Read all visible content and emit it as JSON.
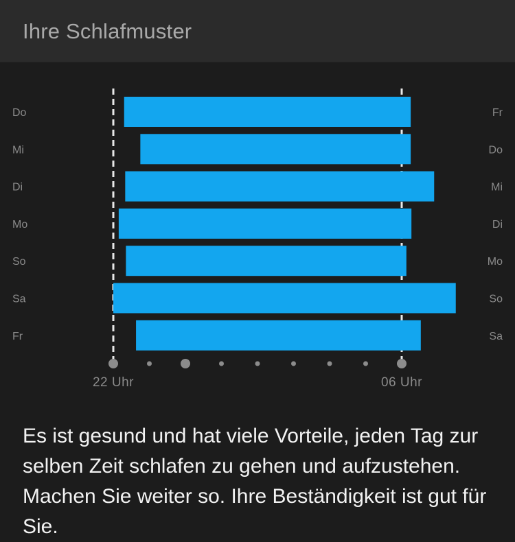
{
  "header": {
    "title": "Ihre Schlafmuster"
  },
  "message": "Es ist gesund und hat viele Vorteile, jeden Tag zur selben Zeit schlafen zu gehen und aufzustehen. Machen Sie weiter so. Ihre Beständigkeit ist gut für Sie.",
  "chart_data": {
    "type": "bar",
    "orientation": "horizontal-range",
    "x_unit": "hour",
    "xlim": [
      22,
      30
    ],
    "x_tick_labels": [
      {
        "hour": 22,
        "label": "22 Uhr"
      },
      {
        "hour": 30,
        "label": "06 Uhr"
      }
    ],
    "x_minor_ticks": [
      23,
      24,
      25,
      26,
      27,
      28,
      29
    ],
    "x_major_ticks": [
      22,
      24,
      30
    ],
    "reference_lines": [
      22,
      30
    ],
    "bar_color": "#13a6ef",
    "rows": [
      {
        "start_day": "Do",
        "end_day": "Fr",
        "sleep": 22.3,
        "wake": 30.25
      },
      {
        "start_day": "Mi",
        "end_day": "Do",
        "sleep": 22.75,
        "wake": 30.25
      },
      {
        "start_day": "Di",
        "end_day": "Mi",
        "sleep": 22.33,
        "wake": 30.9
      },
      {
        "start_day": "Mo",
        "end_day": "Di",
        "sleep": 22.15,
        "wake": 30.27
      },
      {
        "start_day": "So",
        "end_day": "Mo",
        "sleep": 22.35,
        "wake": 30.13
      },
      {
        "start_day": "Sa",
        "end_day": "So",
        "sleep": 22.0,
        "wake": 31.5
      },
      {
        "start_day": "Fr",
        "end_day": "Sa",
        "sleep": 22.63,
        "wake": 30.53
      }
    ]
  }
}
